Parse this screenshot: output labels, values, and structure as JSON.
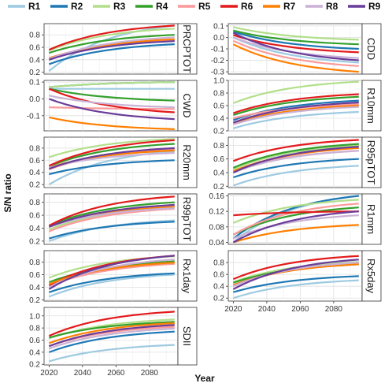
{
  "chart_data": {
    "type": "line",
    "ylabel": "S/N ratio",
    "xlabel": "Year",
    "xlim": [
      2017,
      2097
    ],
    "x_ticks": [
      2020,
      2040,
      2060,
      2080
    ],
    "x": [
      2020,
      2025,
      2030,
      2035,
      2040,
      2045,
      2050,
      2055,
      2060,
      2065,
      2070,
      2075,
      2080,
      2085,
      2090,
      2095
    ],
    "grid": true,
    "legend_position": "top",
    "legend": [
      {
        "name": "R1",
        "color": "#9ecae1"
      },
      {
        "name": "R2",
        "color": "#1f78b4"
      },
      {
        "name": "R3",
        "color": "#b2df8a"
      },
      {
        "name": "R4",
        "color": "#33a02c"
      },
      {
        "name": "R5",
        "color": "#fb9a99"
      },
      {
        "name": "R6",
        "color": "#e31a1c"
      },
      {
        "name": "R7",
        "color": "#ff7f00"
      },
      {
        "name": "R8",
        "color": "#cab2d6"
      },
      {
        "name": "R9",
        "color": "#6a3d9a"
      }
    ],
    "panels": [
      {
        "name": "PRCPTOT",
        "col": 0,
        "row": 0,
        "ylim": [
          0.17,
          0.98
        ],
        "ticks": [
          0.2,
          0.4,
          0.6,
          0.8
        ],
        "series": [
          [
            0.22,
            0.95
          ],
          [
            0.33,
            0.65
          ],
          [
            0.55,
            0.9
          ],
          [
            0.51,
            0.8
          ],
          [
            0.43,
            0.71
          ],
          [
            0.56,
            0.95
          ],
          [
            0.42,
            0.73
          ],
          [
            0.41,
            0.76
          ],
          [
            0.4,
            0.7
          ]
        ]
      },
      {
        "name": "CDD",
        "col": 1,
        "row": 0,
        "ylim": [
          -0.32,
          0.12
        ],
        "ticks": [
          -0.3,
          -0.2,
          -0.1,
          0.0,
          0.1
        ],
        "series": [
          [
            0.0,
            -0.22
          ],
          [
            0.05,
            -0.1
          ],
          [
            0.09,
            -0.02
          ],
          [
            0.06,
            -0.06
          ],
          [
            -0.03,
            -0.25
          ],
          [
            0.02,
            -0.13
          ],
          [
            -0.06,
            -0.3
          ],
          [
            0.0,
            -0.18
          ],
          [
            0.04,
            -0.2
          ]
        ]
      },
      {
        "name": "CWD",
        "col": 0,
        "row": 1,
        "ylim": [
          -0.19,
          0.11
        ],
        "ticks": [
          -0.1,
          0.0,
          0.1
        ],
        "series": [
          [
            0.06,
            0.06
          ],
          [
            0.07,
            0.1
          ],
          [
            0.07,
            0.1
          ],
          [
            0.06,
            -0.01
          ],
          [
            -0.05,
            -0.06
          ],
          [
            0.06,
            -0.08
          ],
          [
            -0.11,
            -0.18
          ],
          [
            0.02,
            -0.05
          ],
          [
            0.0,
            -0.12
          ]
        ]
      },
      {
        "name": "R10mm",
        "col": 1,
        "row": 1,
        "ylim": [
          0.2,
          1.0
        ],
        "ticks": [
          0.2,
          0.4,
          0.6,
          0.8,
          1.0
        ],
        "series": [
          [
            0.24,
            0.5
          ],
          [
            0.37,
            0.68
          ],
          [
            0.64,
            0.98
          ],
          [
            0.45,
            0.74
          ],
          [
            0.4,
            0.62
          ],
          [
            0.48,
            0.78
          ],
          [
            0.32,
            0.6
          ],
          [
            0.3,
            0.58
          ],
          [
            0.33,
            0.65
          ]
        ]
      },
      {
        "name": "R20mm",
        "col": 0,
        "row": 2,
        "ylim": [
          0.15,
          0.98
        ],
        "ticks": [
          0.2,
          0.4,
          0.6,
          0.8
        ],
        "series": [
          [
            0.2,
            0.75
          ],
          [
            0.37,
            0.6
          ],
          [
            0.65,
            0.95
          ],
          [
            0.5,
            0.87
          ],
          [
            0.45,
            0.78
          ],
          [
            0.51,
            0.93
          ],
          [
            0.48,
            0.76
          ],
          [
            0.48,
            0.72
          ],
          [
            0.46,
            0.8
          ]
        ]
      },
      {
        "name": "R95pTOT",
        "col": 1,
        "row": 2,
        "ylim": [
          0.18,
          0.92
        ],
        "ticks": [
          0.2,
          0.4,
          0.6,
          0.8
        ],
        "series": [
          [
            0.21,
            0.5
          ],
          [
            0.33,
            0.6
          ],
          [
            0.45,
            0.8
          ],
          [
            0.47,
            0.82
          ],
          [
            0.42,
            0.72
          ],
          [
            0.57,
            0.88
          ],
          [
            0.42,
            0.76
          ],
          [
            0.4,
            0.72
          ],
          [
            0.4,
            0.78
          ]
        ]
      },
      {
        "name": "R99pTOT",
        "col": 0,
        "row": 3,
        "ylim": [
          0.15,
          0.93
        ],
        "ticks": [
          0.2,
          0.4,
          0.6,
          0.8
        ],
        "series": [
          [
            0.2,
            0.52
          ],
          [
            0.24,
            0.5
          ],
          [
            0.38,
            0.72
          ],
          [
            0.44,
            0.8
          ],
          [
            0.35,
            0.7
          ],
          [
            0.44,
            0.89
          ],
          [
            0.42,
            0.73
          ],
          [
            0.42,
            0.71
          ],
          [
            0.42,
            0.76
          ]
        ]
      },
      {
        "name": "R1mm",
        "col": 1,
        "row": 3,
        "ylim": [
          0.035,
          0.165
        ],
        "ticks": [
          0.04,
          0.08,
          0.12,
          0.16
        ],
        "series": [
          [
            0.04,
            0.16
          ],
          [
            0.05,
            0.16
          ],
          [
            0.09,
            0.15
          ],
          [
            0.06,
            0.13
          ],
          [
            0.06,
            0.14
          ],
          [
            0.11,
            0.12
          ],
          [
            0.04,
            0.085
          ],
          [
            0.05,
            0.11
          ],
          [
            0.04,
            0.12
          ]
        ]
      },
      {
        "name": "Rx1day",
        "col": 0,
        "row": 4,
        "ylim": [
          0.18,
          0.98
        ],
        "ticks": [
          0.2,
          0.4,
          0.6,
          0.8
        ],
        "series": [
          [
            0.25,
            0.6
          ],
          [
            0.32,
            0.62
          ],
          [
            0.55,
            0.89
          ],
          [
            0.48,
            0.81
          ],
          [
            0.42,
            0.77
          ],
          [
            0.43,
            0.9
          ],
          [
            0.45,
            0.79
          ],
          [
            0.4,
            0.84
          ],
          [
            0.37,
            0.9
          ]
        ]
      },
      {
        "name": "Rx5day",
        "col": 1,
        "row": 4,
        "ylim": [
          0.15,
          1.0
        ],
        "ticks": [
          0.2,
          0.4,
          0.6,
          0.8
        ],
        "series": [
          [
            0.2,
            0.5
          ],
          [
            0.3,
            0.57
          ],
          [
            0.47,
            0.81
          ],
          [
            0.46,
            0.77
          ],
          [
            0.42,
            0.77
          ],
          [
            0.52,
            0.91
          ],
          [
            0.42,
            0.77
          ],
          [
            0.4,
            0.8
          ],
          [
            0.35,
            0.85
          ]
        ]
      },
      {
        "name": "SDII",
        "col": 0,
        "row": 5,
        "ylim": [
          0.19,
          1.14
        ],
        "ticks": [
          0.2,
          0.4,
          0.6,
          0.8,
          1.0
        ],
        "series": [
          [
            0.25,
            0.52
          ],
          [
            0.4,
            0.74
          ],
          [
            0.63,
            0.94
          ],
          [
            0.64,
            0.9
          ],
          [
            0.5,
            0.82
          ],
          [
            0.67,
            1.07
          ],
          [
            0.55,
            0.88
          ],
          [
            0.46,
            0.79
          ],
          [
            0.5,
            0.85
          ]
        ]
      }
    ]
  }
}
